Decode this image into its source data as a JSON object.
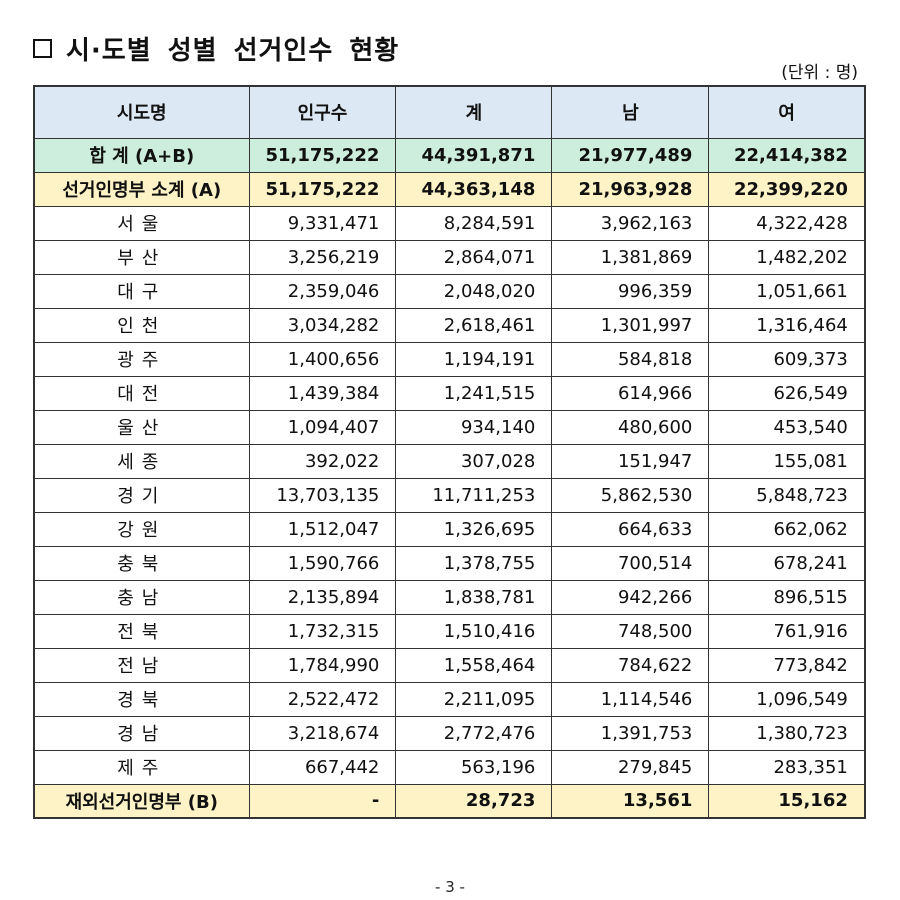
{
  "title": "시·도별 성별 선거인수 현황",
  "unit": "(단위 : 명)",
  "table": {
    "headers": [
      "시도명",
      "인구수",
      "계",
      "남",
      "여"
    ],
    "total": {
      "name": "합 계 (A+B)",
      "population": "51,175,222",
      "sum": "44,391,871",
      "male": "21,977,489",
      "female": "22,414,382"
    },
    "subtotal": {
      "name": "선거인명부 소계 (A)",
      "population": "51,175,222",
      "sum": "44,363,148",
      "male": "21,963,928",
      "female": "22,399,220"
    },
    "rows": [
      {
        "name": "서울",
        "population": "9,331,471",
        "sum": "8,284,591",
        "male": "3,962,163",
        "female": "4,322,428"
      },
      {
        "name": "부산",
        "population": "3,256,219",
        "sum": "2,864,071",
        "male": "1,381,869",
        "female": "1,482,202"
      },
      {
        "name": "대구",
        "population": "2,359,046",
        "sum": "2,048,020",
        "male": "996,359",
        "female": "1,051,661"
      },
      {
        "name": "인천",
        "population": "3,034,282",
        "sum": "2,618,461",
        "male": "1,301,997",
        "female": "1,316,464"
      },
      {
        "name": "광주",
        "population": "1,400,656",
        "sum": "1,194,191",
        "male": "584,818",
        "female": "609,373"
      },
      {
        "name": "대전",
        "population": "1,439,384",
        "sum": "1,241,515",
        "male": "614,966",
        "female": "626,549"
      },
      {
        "name": "울산",
        "population": "1,094,407",
        "sum": "934,140",
        "male": "480,600",
        "female": "453,540"
      },
      {
        "name": "세종",
        "population": "392,022",
        "sum": "307,028",
        "male": "151,947",
        "female": "155,081"
      },
      {
        "name": "경기",
        "population": "13,703,135",
        "sum": "11,711,253",
        "male": "5,862,530",
        "female": "5,848,723"
      },
      {
        "name": "강원",
        "population": "1,512,047",
        "sum": "1,326,695",
        "male": "664,633",
        "female": "662,062"
      },
      {
        "name": "충북",
        "population": "1,590,766",
        "sum": "1,378,755",
        "male": "700,514",
        "female": "678,241"
      },
      {
        "name": "충남",
        "population": "2,135,894",
        "sum": "1,838,781",
        "male": "942,266",
        "female": "896,515"
      },
      {
        "name": "전북",
        "population": "1,732,315",
        "sum": "1,510,416",
        "male": "748,500",
        "female": "761,916"
      },
      {
        "name": "전남",
        "population": "1,784,990",
        "sum": "1,558,464",
        "male": "784,622",
        "female": "773,842"
      },
      {
        "name": "경북",
        "population": "2,522,472",
        "sum": "2,211,095",
        "male": "1,114,546",
        "female": "1,096,549"
      },
      {
        "name": "경남",
        "population": "3,218,674",
        "sum": "2,772,476",
        "male": "1,391,753",
        "female": "1,380,723"
      },
      {
        "name": "제주",
        "population": "667,442",
        "sum": "563,196",
        "male": "279,845",
        "female": "283,351"
      }
    ],
    "overseas": {
      "name": "재외선거인명부 (B)",
      "population": "-",
      "sum": "28,723",
      "male": "13,561",
      "female": "15,162"
    }
  },
  "page_number": "- 3 -",
  "colors": {
    "header_bg": "#dce9f5",
    "total_bg": "#cdeedd",
    "subtotal_bg": "#fdf3c6"
  }
}
